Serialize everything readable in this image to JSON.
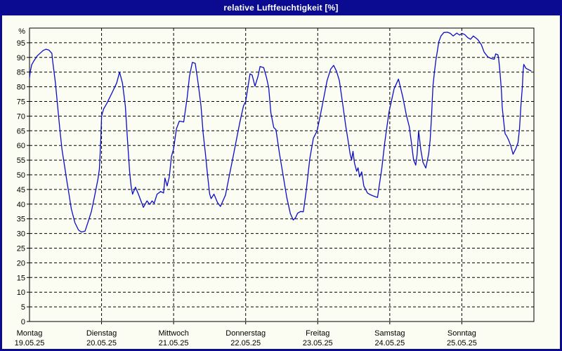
{
  "window": {
    "title": "relative Luftfeuchtigkeit [%]"
  },
  "colors": {
    "title_bar": "#0b0b92",
    "title_text": "#ffffff",
    "window_border": "#0b0b92",
    "background": "#fbfdf2",
    "line": "#0c0cc8",
    "grid": "#000000",
    "text": "#000000"
  },
  "chart_data": {
    "type": "line",
    "title": "relative Luftfeuchtigkeit [%]",
    "unit_label": "%",
    "ylabel": "%",
    "ylim": [
      0,
      100
    ],
    "ytick_min": 0,
    "ytick_max": 95,
    "ytick_step": 5,
    "grid": "dashed",
    "legend": "none",
    "x_days": [
      {
        "name": "Montag",
        "date": "19.05.25"
      },
      {
        "name": "Dienstag",
        "date": "20.05.25"
      },
      {
        "name": "Mittwoch",
        "date": "21.05.25"
      },
      {
        "name": "Donnerstag",
        "date": "22.05.25"
      },
      {
        "name": "Freitag",
        "date": "23.05.25"
      },
      {
        "name": "Samstag",
        "date": "24.05.25"
      },
      {
        "name": "Sonntag",
        "date": "25.05.25"
      }
    ],
    "series": [
      {
        "name": "relative Luftfeuchtigkeit",
        "x_unit": "days_since_19.05.25",
        "y_unit": "percent",
        "points": [
          [
            0,
            83
          ],
          [
            0.01,
            85
          ],
          [
            0.03,
            87.5
          ],
          [
            0.06,
            88.8
          ],
          [
            0.11,
            90.6
          ],
          [
            0.19,
            92.4
          ],
          [
            0.23,
            92.8
          ],
          [
            0.27,
            92.5
          ],
          [
            0.31,
            91.4
          ],
          [
            0.32,
            89.1
          ],
          [
            0.36,
            81.3
          ],
          [
            0.39,
            73.5
          ],
          [
            0.42,
            65.7
          ],
          [
            0.45,
            58.7
          ],
          [
            0.49,
            52.4
          ],
          [
            0.52,
            47.7
          ],
          [
            0.55,
            43.1
          ],
          [
            0.58,
            38.4
          ],
          [
            0.63,
            33.7
          ],
          [
            0.68,
            31.2
          ],
          [
            0.72,
            30.5
          ],
          [
            0.77,
            30.8
          ],
          [
            0.81,
            33.7
          ],
          [
            0.86,
            37.6
          ],
          [
            0.9,
            42.3
          ],
          [
            0.95,
            48.5
          ],
          [
            0.97,
            52
          ],
          [
            0.99,
            62
          ],
          [
            1,
            70
          ],
          [
            1.03,
            72.5
          ],
          [
            1.07,
            74.2
          ],
          [
            1.15,
            78.2
          ],
          [
            1.21,
            81.3
          ],
          [
            1.25,
            85
          ],
          [
            1.29,
            81.3
          ],
          [
            1.33,
            73.5
          ],
          [
            1.36,
            61.8
          ],
          [
            1.39,
            50.8
          ],
          [
            1.41,
            46.2
          ],
          [
            1.43,
            43.4
          ],
          [
            1.47,
            45.8
          ],
          [
            1.51,
            43.5
          ],
          [
            1.54,
            41.5
          ],
          [
            1.58,
            38.9
          ],
          [
            1.63,
            41.1
          ],
          [
            1.67,
            39.9
          ],
          [
            1.7,
            41.1
          ],
          [
            1.73,
            40.3
          ],
          [
            1.77,
            43.4
          ],
          [
            1.82,
            44.3
          ],
          [
            1.86,
            43.8
          ],
          [
            1.88,
            48.9
          ],
          [
            1.91,
            46.2
          ],
          [
            1.94,
            49.3
          ],
          [
            1.97,
            56.3
          ],
          [
            2,
            58.8
          ],
          [
            2.04,
            65.7
          ],
          [
            2.08,
            68.3
          ],
          [
            2.14,
            68
          ],
          [
            2.19,
            76.6
          ],
          [
            2.22,
            83.6
          ],
          [
            2.26,
            88.3
          ],
          [
            2.3,
            88
          ],
          [
            2.34,
            81.3
          ],
          [
            2.38,
            73.5
          ],
          [
            2.41,
            64.1
          ],
          [
            2.44,
            57.5
          ],
          [
            2.47,
            50
          ],
          [
            2.5,
            43.5
          ],
          [
            2.52,
            41.9
          ],
          [
            2.56,
            43.4
          ],
          [
            2.61,
            40.5
          ],
          [
            2.65,
            39.2
          ],
          [
            2.72,
            43.1
          ],
          [
            2.77,
            49.3
          ],
          [
            2.82,
            55.5
          ],
          [
            2.87,
            61.8
          ],
          [
            2.92,
            68
          ],
          [
            2.97,
            73.5
          ],
          [
            3,
            75
          ],
          [
            3.03,
            79.7
          ],
          [
            3.06,
            84.4
          ],
          [
            3.09,
            84
          ],
          [
            3.13,
            80.2
          ],
          [
            3.17,
            83.5
          ],
          [
            3.2,
            86.9
          ],
          [
            3.25,
            86.5
          ],
          [
            3.29,
            83
          ],
          [
            3.32,
            79.7
          ],
          [
            3.35,
            71.1
          ],
          [
            3.39,
            66.1
          ],
          [
            3.42,
            65.4
          ],
          [
            3.47,
            57.1
          ],
          [
            3.52,
            49.7
          ],
          [
            3.57,
            42.3
          ],
          [
            3.62,
            36.8
          ],
          [
            3.66,
            34.6
          ],
          [
            3.69,
            35.3
          ],
          [
            3.72,
            36.9
          ],
          [
            3.76,
            37.5
          ],
          [
            3.8,
            37.4
          ],
          [
            3.84,
            44.6
          ],
          [
            3.89,
            55.5
          ],
          [
            3.94,
            62.5
          ],
          [
            3.99,
            64.9
          ],
          [
            4.03,
            69.6
          ],
          [
            4.08,
            75.8
          ],
          [
            4.13,
            82.1
          ],
          [
            4.18,
            86
          ],
          [
            4.22,
            87.3
          ],
          [
            4.26,
            85.3
          ],
          [
            4.3,
            82.1
          ],
          [
            4.35,
            73.5
          ],
          [
            4.39,
            66.4
          ],
          [
            4.42,
            61.8
          ],
          [
            4.45,
            57.1
          ],
          [
            4.47,
            55.1
          ],
          [
            4.49,
            58
          ],
          [
            4.51,
            54
          ],
          [
            4.54,
            51.2
          ],
          [
            4.56,
            52.4
          ],
          [
            4.58,
            49.3
          ],
          [
            4.61,
            51
          ],
          [
            4.64,
            46.2
          ],
          [
            4.69,
            43.8
          ],
          [
            4.73,
            43.2
          ],
          [
            4.78,
            42.7
          ],
          [
            4.83,
            42.3
          ],
          [
            4.89,
            52.4
          ],
          [
            4.93,
            61
          ],
          [
            4.96,
            66.4
          ],
          [
            4.99,
            71.5
          ],
          [
            5.02,
            74.8
          ],
          [
            5.06,
            79.3
          ],
          [
            5.12,
            82.6
          ],
          [
            5.18,
            76.6
          ],
          [
            5.23,
            70.4
          ],
          [
            5.27,
            66.4
          ],
          [
            5.3,
            61
          ],
          [
            5.33,
            55.1
          ],
          [
            5.36,
            53.3
          ],
          [
            5.38,
            57
          ],
          [
            5.4,
            64.9
          ],
          [
            5.43,
            58.6
          ],
          [
            5.46,
            54.3
          ],
          [
            5.5,
            52.3
          ],
          [
            5.54,
            57.1
          ],
          [
            5.56,
            61.8
          ],
          [
            5.58,
            70
          ],
          [
            5.59,
            75.8
          ],
          [
            5.6,
            80.5
          ],
          [
            5.62,
            85.2
          ],
          [
            5.64,
            89.1
          ],
          [
            5.66,
            92.2
          ],
          [
            5.68,
            95.3
          ],
          [
            5.71,
            97.3
          ],
          [
            5.75,
            98.5
          ],
          [
            5.8,
            98.6
          ],
          [
            5.84,
            98.2
          ],
          [
            5.88,
            97.3
          ],
          [
            5.93,
            98.3
          ],
          [
            5.97,
            97.6
          ],
          [
            6,
            98.2
          ],
          [
            6.04,
            97.8
          ],
          [
            6.08,
            96.8
          ],
          [
            6.12,
            96.2
          ],
          [
            6.16,
            97.3
          ],
          [
            6.22,
            96.1
          ],
          [
            6.27,
            94.4
          ],
          [
            6.31,
            91.8
          ],
          [
            6.36,
            90.2
          ],
          [
            6.41,
            89.6
          ],
          [
            6.45,
            89.4
          ],
          [
            6.47,
            91.2
          ],
          [
            6.5,
            90.9
          ],
          [
            6.51,
            89.8
          ],
          [
            6.53,
            84.8
          ],
          [
            6.55,
            78.5
          ],
          [
            6.56,
            73.1
          ],
          [
            6.58,
            68.4
          ],
          [
            6.6,
            64
          ],
          [
            6.62,
            63.3
          ],
          [
            6.65,
            61.8
          ],
          [
            6.68,
            59.8
          ],
          [
            6.71,
            57
          ],
          [
            6.75,
            59
          ],
          [
            6.78,
            61
          ],
          [
            6.8,
            65.7
          ],
          [
            6.82,
            73.5
          ],
          [
            6.84,
            80.1
          ],
          [
            6.85,
            85.2
          ],
          [
            6.86,
            87.6
          ],
          [
            6.89,
            86.3
          ],
          [
            6.93,
            85.8
          ],
          [
            6.96,
            85.4
          ]
        ]
      }
    ]
  }
}
